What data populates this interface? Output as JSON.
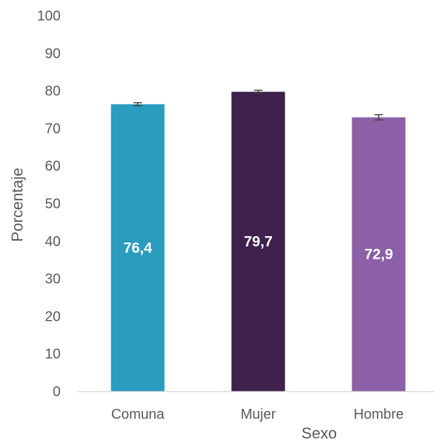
{
  "chart_data": {
    "type": "bar",
    "title": "",
    "xlabel": "Sexo",
    "ylabel": "Porcentaje",
    "ylim": [
      0,
      100
    ],
    "yticks": [
      0,
      10,
      20,
      30,
      40,
      50,
      60,
      70,
      80,
      90,
      100
    ],
    "grid": false,
    "categories": [
      "Comuna",
      "Mujer",
      "Hombre"
    ],
    "values": [
      76.4,
      79.7,
      72.9
    ],
    "value_labels": [
      "76,4",
      "79,7",
      "72,9"
    ],
    "error_bars": [
      {
        "low": 76.0,
        "high": 76.8
      },
      {
        "low": 79.3,
        "high": 80.1
      },
      {
        "low": 72.2,
        "high": 73.6
      }
    ],
    "colors": [
      "#2a9dbf",
      "#3e214d",
      "#8b60a6"
    ],
    "error_bar_color": "#404040",
    "axis_color": "#d9d9d9"
  }
}
